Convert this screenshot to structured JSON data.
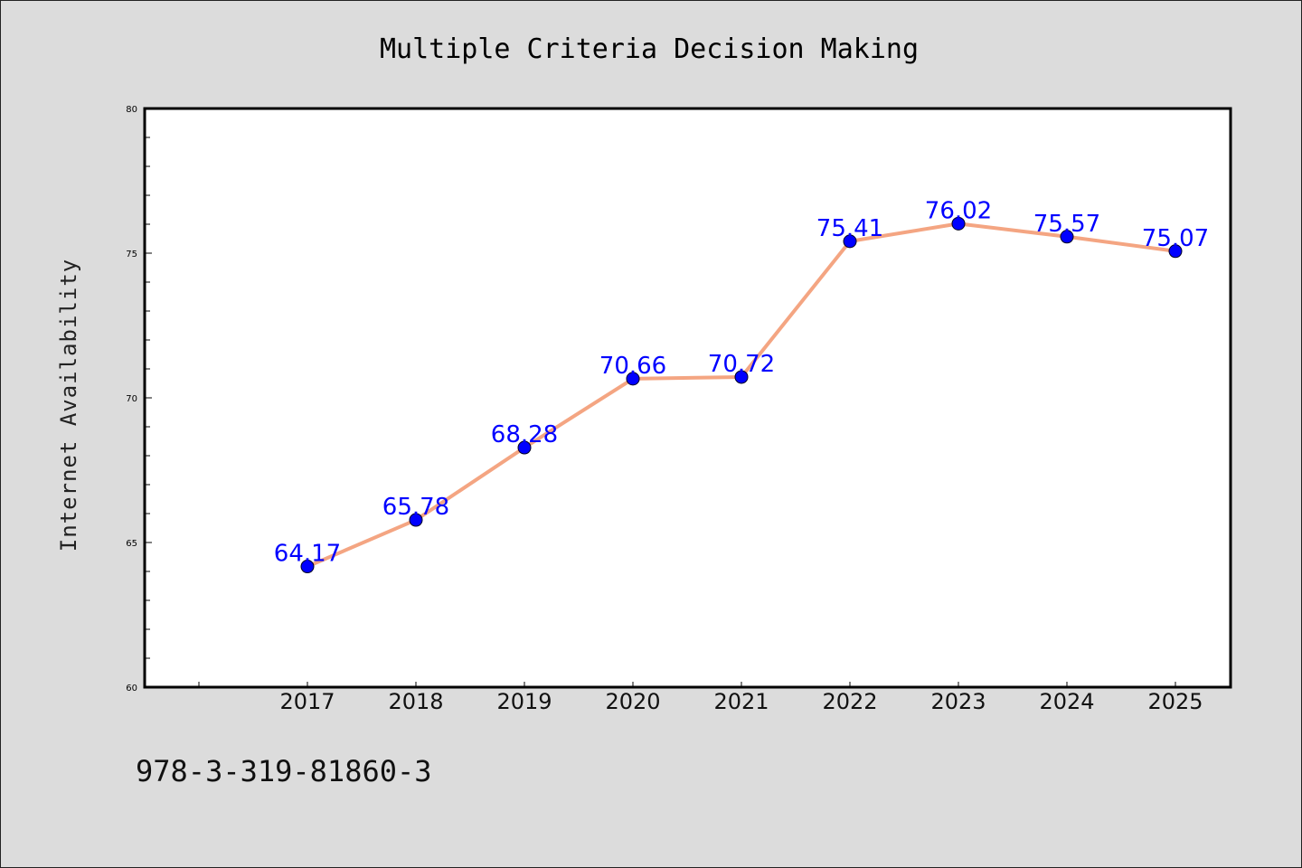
{
  "chart_data": {
    "type": "line",
    "title": "Multiple Criteria Decision Making",
    "ylabel": "Internet Availability",
    "xlabel": "",
    "categories": [
      "2017",
      "2018",
      "2019",
      "2020",
      "2021",
      "2022",
      "2023",
      "2024",
      "2025"
    ],
    "values": [
      64.17,
      65.78,
      68.28,
      70.66,
      70.72,
      75.41,
      76.02,
      75.57,
      75.07
    ],
    "value_labels": [
      "64.17",
      "65.78",
      "68.28",
      "70.66",
      "70.72",
      "75.41",
      "76.02",
      "75.57",
      "75.07"
    ],
    "ylim": [
      60,
      80
    ],
    "yticks": [
      "60",
      "65",
      "70",
      "75",
      "80"
    ],
    "grid": false,
    "colors": {
      "line": "#f4a582",
      "marker": "#0000ff",
      "data_label": "#0000ff",
      "background": "#dcdcdc",
      "plot_background": "#ffffff"
    }
  },
  "footer": {
    "isbn": "978-3-319-81860-3"
  }
}
